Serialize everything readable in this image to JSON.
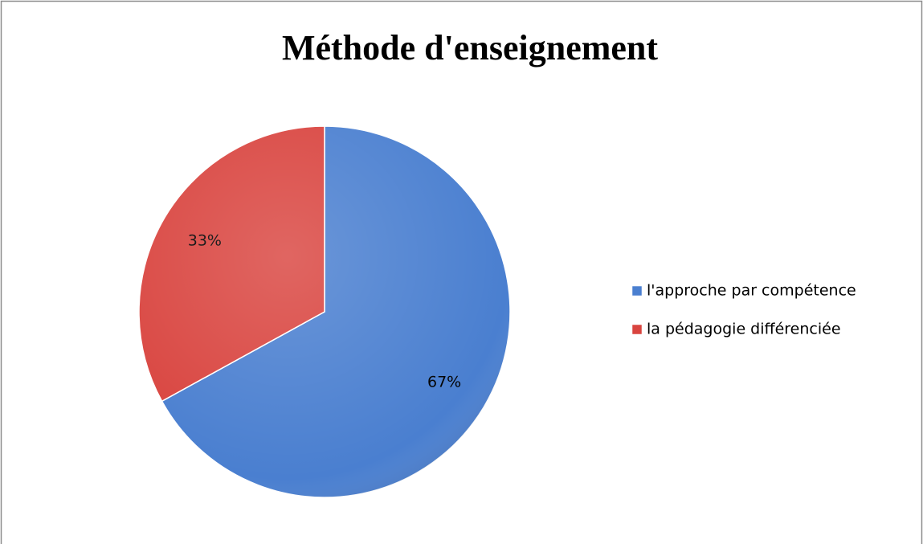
{
  "chart_data": {
    "type": "pie",
    "title": "Méthode d'enseignement",
    "categories": [
      "l'approche par compétence",
      "la pédagogie différenciée"
    ],
    "values": [
      67,
      33
    ],
    "value_labels": [
      "67%",
      "33%"
    ],
    "colors": [
      "#4a7fd0",
      "#d9443f"
    ],
    "legend": "right"
  }
}
